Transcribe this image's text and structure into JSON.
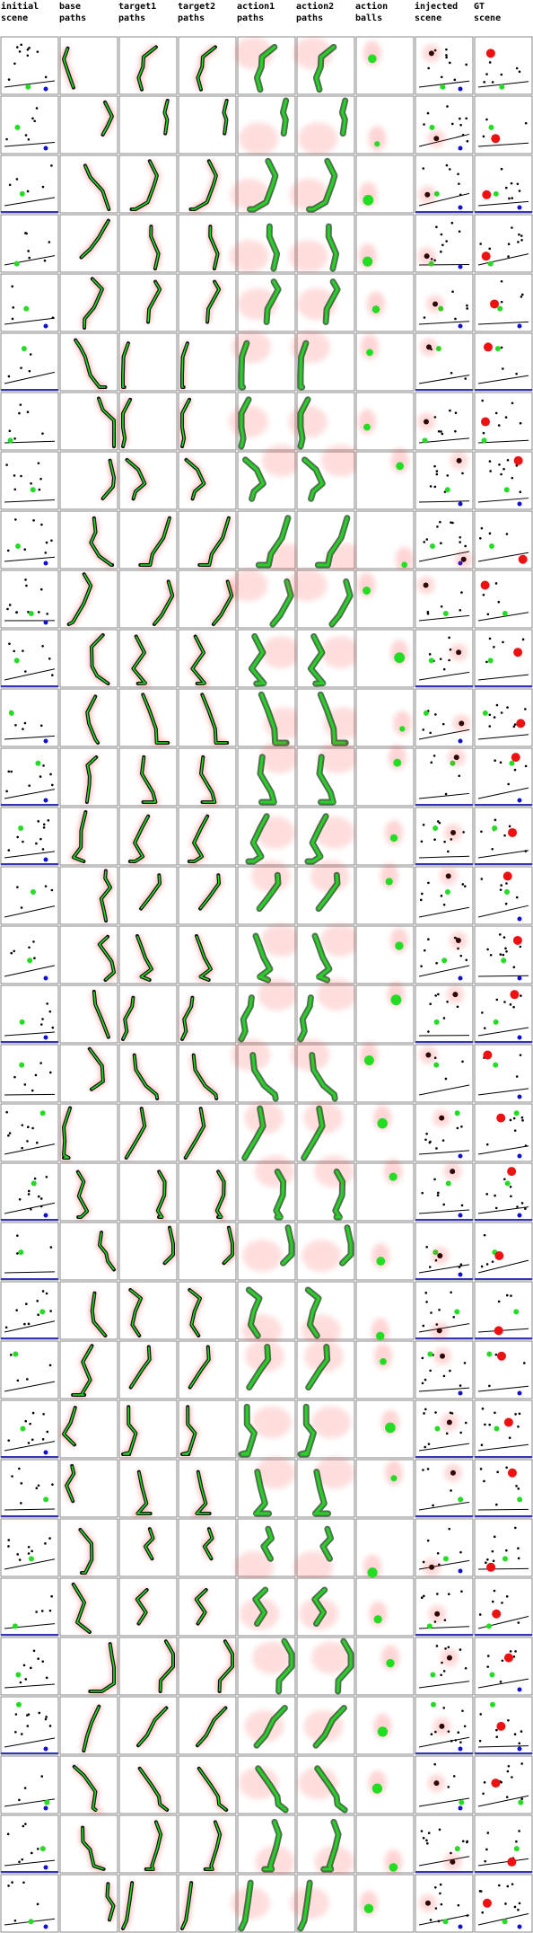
{
  "columns": [
    "initial\nscene",
    "base\npaths",
    "target1\npaths",
    "target2\npaths",
    "action1\npaths",
    "action2\npaths",
    "action\nballs",
    "injected\nscene",
    "GT\nscene"
  ],
  "row_count": 32,
  "colors": {
    "grid_border": "#888888",
    "path_black": "#111111",
    "path_green": "#22dd22",
    "path_red": "#ff3333",
    "ball_green": "#22dd22",
    "ball_red": "#ee1111",
    "ball_blue": "#1111cc",
    "wall_blue": "#3333bb"
  }
}
